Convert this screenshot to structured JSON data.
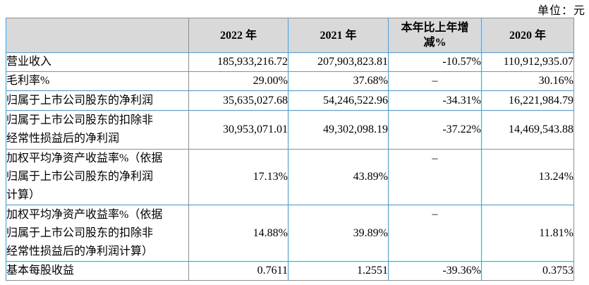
{
  "unit_label": "单位：元",
  "colors": {
    "border_blue": "#5b9bd5",
    "header_gray": "#d9d9d9",
    "text": "#000000",
    "background": "#ffffff"
  },
  "table": {
    "columns": [
      "",
      "2022 年",
      "2021 年",
      "本年比上年增\n减%",
      "2020 年"
    ],
    "rows": [
      {
        "label": "营业收入",
        "y2022": "185,933,216.72",
        "y2021": "207,903,823.81",
        "change": "-10.57%",
        "y2020": "110,912,935.07"
      },
      {
        "label": "毛利率%",
        "y2022": "29.00%",
        "y2021": "37.68%",
        "change": "–",
        "y2020": "30.16%"
      },
      {
        "label": "归属于上市公司股东的净利润",
        "y2022": "35,635,027.68",
        "y2021": "54,246,522.96",
        "change": "-34.31%",
        "y2020": "16,221,984.79"
      },
      {
        "label": "归属于上市公司股东的扣除非\n经常性损益后的净利润",
        "y2022": "30,953,071.01",
        "y2021": "49,302,098.19",
        "change": "-37.22%",
        "y2020": "14,469,543.88"
      },
      {
        "label": "加权平均净资产收益率%（依据\n归属于上市公司股东的净利润\n计算）",
        "y2022": "17.13%",
        "y2021": "43.89%",
        "change": "–",
        "y2020": "13.24%"
      },
      {
        "label": "加权平均净资产收益率%（依据\n归属于上市公司股东的扣除非\n经常性损益后的净利润计算）",
        "y2022": "14.88%",
        "y2021": "39.89%",
        "change": "–",
        "y2020": "11.81%"
      },
      {
        "label": "基本每股收益",
        "y2022": "0.7611",
        "y2021": "1.2551",
        "change": "-39.36%",
        "y2020": "0.3753"
      }
    ]
  }
}
